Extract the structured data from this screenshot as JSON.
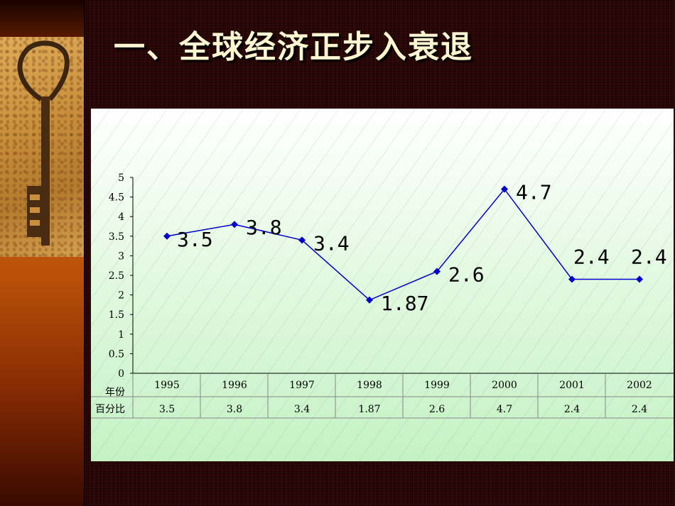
{
  "slide": {
    "title": "一、全球经济正步入衰退"
  },
  "chart_data": {
    "type": "line",
    "title": "",
    "xlabel": "",
    "ylabel": "",
    "categories": [
      "1995",
      "1996",
      "1997",
      "1998",
      "1999",
      "2000",
      "2001",
      "2002"
    ],
    "series": [
      {
        "values": [
          3.5,
          3.8,
          3.4,
          1.87,
          2.6,
          4.7,
          2.4,
          2.4
        ],
        "color": "#0000cc"
      }
    ],
    "data_labels": [
      "3.5",
      "3.8",
      "3.4",
      "1.87",
      "2.6",
      "4.7",
      "2.4",
      "2.4"
    ],
    "ylim": [
      0,
      5
    ],
    "yticks": [
      "0",
      "0.5",
      "1",
      "1.5",
      "2",
      "2.5",
      "3",
      "3.5",
      "4",
      "4.5",
      "5"
    ],
    "grid": false,
    "marker": "diamond",
    "data_table": {
      "row_headers": [
        "年份",
        "百分比"
      ],
      "values": [
        "3.5",
        "3.8",
        "3.4",
        "1.87",
        "2.6",
        "4.7",
        "2.4",
        "2.4"
      ]
    }
  }
}
